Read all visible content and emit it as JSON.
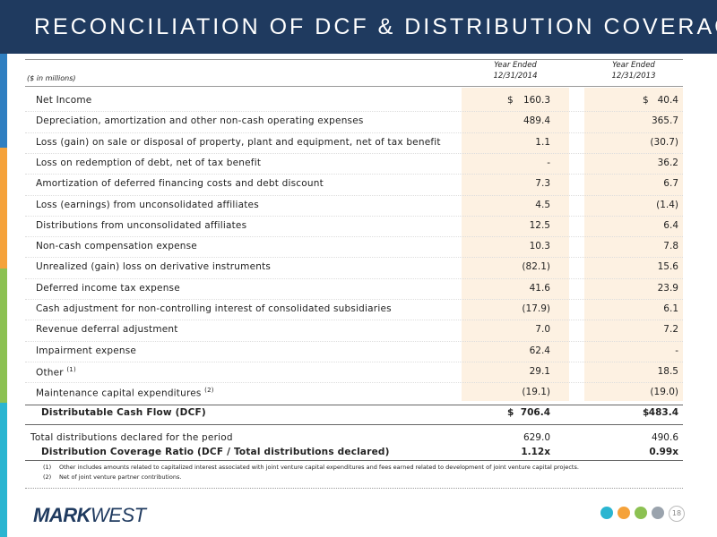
{
  "header": {
    "title": "RECONCILIATION OF DCF & DISTRIBUTION COVERAGE"
  },
  "table": {
    "unit_note": "($ in millions)",
    "columns": [
      {
        "line1": "Year Ended",
        "line2": "12/31/2014"
      },
      {
        "line1": "Year Ended",
        "line2": "12/31/2013"
      }
    ],
    "rows": [
      {
        "label": "Net Income",
        "currency": "$",
        "values": [
          "160.3",
          "40.4"
        ]
      },
      {
        "label": "Depreciation, amortization and other non-cash operating expenses",
        "values": [
          "489.4",
          "365.7"
        ]
      },
      {
        "label": "Loss (gain) on sale or disposal of property, plant and equipment, net of tax benefit",
        "values": [
          "1.1",
          "(30.7)"
        ]
      },
      {
        "label": "Loss on redemption of debt, net of tax benefit",
        "values": [
          "-",
          "36.2"
        ]
      },
      {
        "label": "Amortization of deferred financing costs and debt discount",
        "values": [
          "7.3",
          "6.7"
        ]
      },
      {
        "label": "Loss (earnings) from unconsolidated affiliates",
        "values": [
          "4.5",
          "(1.4)"
        ]
      },
      {
        "label": "Distributions from unconsolidated affiliates",
        "values": [
          "12.5",
          "6.4"
        ]
      },
      {
        "label": "Non-cash compensation expense",
        "values": [
          "10.3",
          "7.8"
        ]
      },
      {
        "label": "Unrealized (gain) loss on derivative instruments",
        "values": [
          "(82.1)",
          "15.6"
        ]
      },
      {
        "label": "Deferred income tax expense",
        "values": [
          "41.6",
          "23.9"
        ]
      },
      {
        "label": "Cash adjustment for non-controlling interest of consolidated subsidiaries",
        "values": [
          "(17.9)",
          "6.1"
        ]
      },
      {
        "label": "Revenue deferral adjustment",
        "values": [
          "7.0",
          "7.2"
        ]
      },
      {
        "label": "Impairment expense",
        "values": [
          "62.4",
          "-"
        ]
      },
      {
        "label": "Other",
        "note": "(1)",
        "values": [
          "29.1",
          "18.5"
        ]
      },
      {
        "label": "Maintenance capital expenditures",
        "note": "(2)",
        "values": [
          "(19.1)",
          "(19.0)"
        ]
      },
      {
        "label": "Distributable Cash Flow (DCF)",
        "currency": "$",
        "values": [
          "706.4",
          "483.4"
        ]
      },
      {
        "label": "Total distributions declared for the period",
        "values": [
          "629.0",
          "490.6"
        ]
      },
      {
        "label": "Distribution Coverage Ratio (DCF / Total distributions declared)",
        "values": [
          "1.12x",
          "0.99x"
        ]
      }
    ]
  },
  "footnotes": [
    {
      "marker": "(1)",
      "text": "Other includes amounts related to capitalized interest associated with joint venture capital expenditures and fees earned related to development of joint venture capital projects."
    },
    {
      "marker": "(2)",
      "text": "Net of joint venture partner contributions."
    }
  ],
  "footer": {
    "logo": [
      "MARK",
      "WEST"
    ],
    "page_number": "18"
  }
}
